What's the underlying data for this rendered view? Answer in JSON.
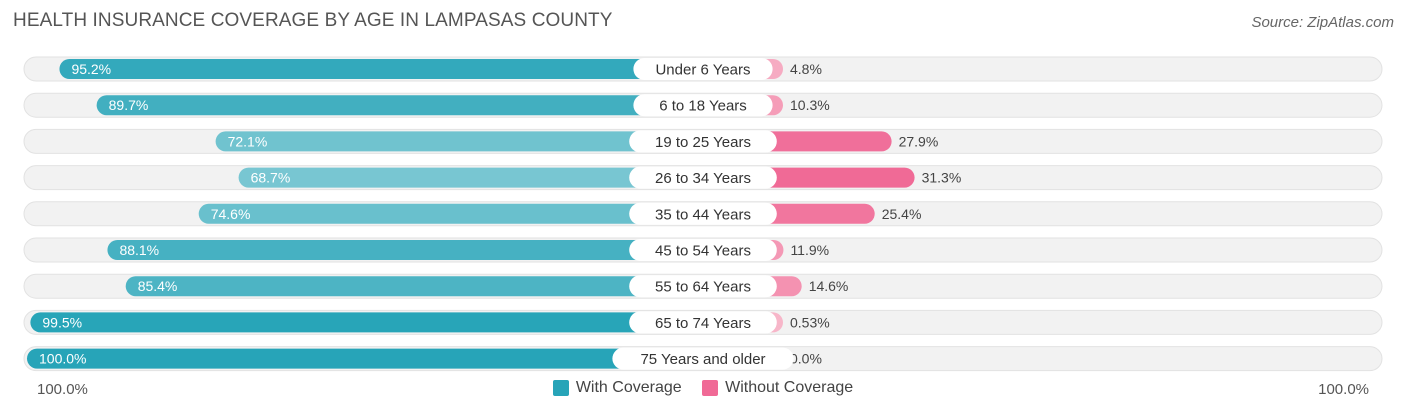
{
  "colors": {
    "with_coverage": "#27a4b8",
    "without_coverage": "#f06a96",
    "with_coverage_light": "#8fd0d9",
    "without_coverage_light": "#f7b7ca",
    "row_background": "#f2f2f2"
  },
  "chart_data": {
    "type": "bar",
    "title": "HEALTH INSURANCE COVERAGE BY AGE IN LAMPASAS COUNTY",
    "source": "Source: ZipAtlas.com",
    "categories": [
      "Under 6 Years",
      "6 to 18 Years",
      "19 to 25 Years",
      "26 to 34 Years",
      "35 to 44 Years",
      "45 to 54 Years",
      "55 to 64 Years",
      "65 to 74 Years",
      "75 Years and older"
    ],
    "series": [
      {
        "name": "With Coverage",
        "values": [
          95.2,
          89.7,
          72.1,
          68.7,
          74.6,
          88.1,
          85.4,
          99.5,
          100.0
        ],
        "labels": [
          "95.2%",
          "89.7%",
          "72.1%",
          "68.7%",
          "74.6%",
          "88.1%",
          "85.4%",
          "99.5%",
          "100.0%"
        ]
      },
      {
        "name": "Without Coverage",
        "values": [
          4.8,
          10.3,
          27.9,
          31.3,
          25.4,
          11.9,
          14.6,
          0.53,
          0.0
        ],
        "labels": [
          "4.8%",
          "10.3%",
          "27.9%",
          "31.3%",
          "25.4%",
          "11.9%",
          "14.6%",
          "0.53%",
          "0.0%"
        ]
      }
    ],
    "axis": {
      "left_label": "100.0%",
      "right_label": "100.0%",
      "range": [
        0,
        100
      ]
    },
    "legend": {
      "position": "bottom-center",
      "items": [
        "With Coverage",
        "Without Coverage"
      ]
    }
  }
}
